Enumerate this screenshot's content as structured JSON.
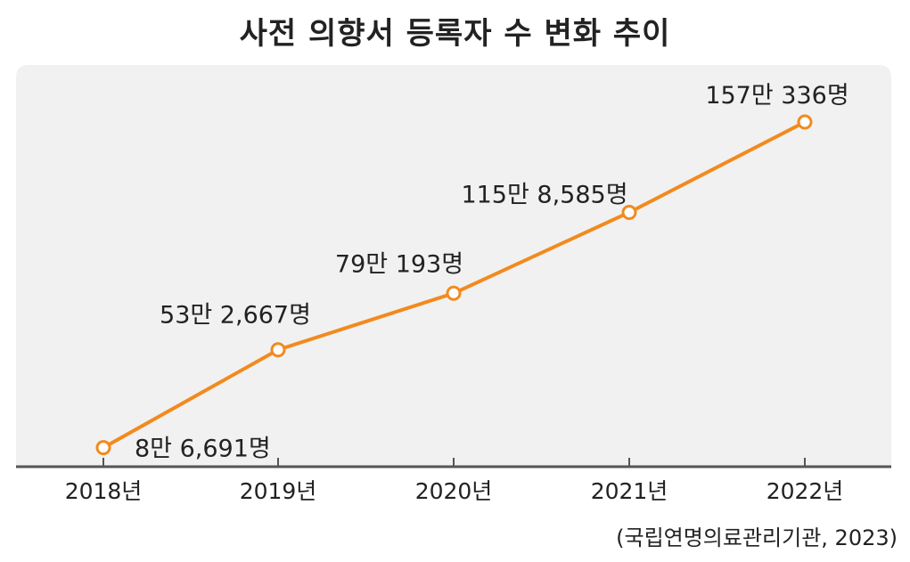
{
  "chart_data": {
    "type": "line",
    "title": "사전 의향서 등록자 수 변화 추이",
    "source": "(국립연명의료관리기관, 2023)",
    "categories": [
      "2018년",
      "2019년",
      "2020년",
      "2021년",
      "2022년"
    ],
    "values": [
      86691,
      532667,
      790193,
      1158585,
      1570336
    ],
    "data_labels": [
      "8만 6,691명",
      "53만 2,667명",
      "79만 193명",
      "115만 8,585명",
      "157만 336명"
    ],
    "ylim": [
      0,
      1830000
    ],
    "grid": false,
    "colors": {
      "line": "#f28a1e",
      "plot_bg": "#f1f1f1",
      "axis": "#555555"
    }
  }
}
